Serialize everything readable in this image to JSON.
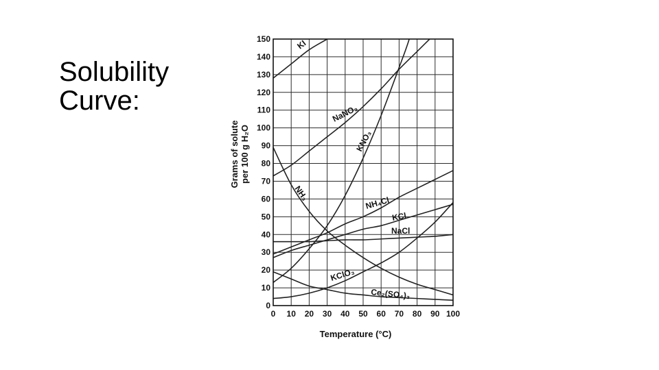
{
  "slide": {
    "title": "Solubility\nCurve:"
  },
  "chart_data": {
    "type": "line",
    "title": "",
    "xlabel": "Temperature (°C)",
    "ylabel_line1": "Grams of solute",
    "ylabel_line2": "per 100 g H₂O",
    "xlim": [
      0,
      100
    ],
    "ylim": [
      0,
      150
    ],
    "x_ticks": [
      0,
      10,
      20,
      30,
      40,
      50,
      60,
      70,
      80,
      90,
      100
    ],
    "y_ticks": [
      0,
      10,
      20,
      30,
      40,
      50,
      60,
      70,
      80,
      90,
      100,
      110,
      120,
      130,
      140,
      150
    ],
    "grid": true,
    "series": [
      {
        "name": "KI",
        "x": [
          0,
          10,
          20,
          30,
          40
        ],
        "y": [
          128,
          136,
          144,
          150,
          156
        ]
      },
      {
        "name": "NaNO₃",
        "x": [
          0,
          10,
          20,
          30,
          40,
          50,
          60,
          70,
          80,
          90,
          100
        ],
        "y": [
          73,
          79,
          87,
          95,
          103,
          112,
          122,
          133,
          143,
          153,
          163
        ]
      },
      {
        "name": "KNO₃",
        "x": [
          0,
          10,
          20,
          30,
          40,
          50,
          60,
          70,
          75,
          80
        ],
        "y": [
          13,
          21,
          32,
          45,
          62,
          83,
          107,
          134,
          148,
          165
        ]
      },
      {
        "name": "NH₃",
        "x": [
          0,
          10,
          20,
          30,
          40,
          50,
          60,
          70,
          80,
          90,
          100
        ],
        "y": [
          89,
          68,
          53,
          42,
          34,
          27,
          21,
          16,
          12,
          9,
          6
        ]
      },
      {
        "name": "NH₄Cl",
        "x": [
          0,
          10,
          20,
          30,
          40,
          50,
          60,
          70,
          80,
          90,
          100
        ],
        "y": [
          29,
          33,
          37,
          41,
          46,
          50,
          55,
          61,
          66,
          71,
          76
        ]
      },
      {
        "name": "KCl",
        "x": [
          0,
          10,
          20,
          30,
          40,
          50,
          60,
          70,
          80,
          90,
          100
        ],
        "y": [
          27,
          31,
          34,
          37,
          40,
          43,
          45,
          48,
          51,
          54,
          57
        ]
      },
      {
        "name": "NaCl",
        "x": [
          0,
          10,
          20,
          30,
          40,
          50,
          60,
          70,
          80,
          90,
          100
        ],
        "y": [
          36,
          36,
          36,
          36.5,
          37,
          37,
          37.5,
          38,
          38.5,
          39,
          40
        ]
      },
      {
        "name": "KClO₃",
        "x": [
          0,
          10,
          20,
          30,
          40,
          50,
          60,
          70,
          80,
          90,
          100
        ],
        "y": [
          4,
          5,
          7,
          10,
          14,
          19,
          24,
          30,
          38,
          47,
          58
        ]
      },
      {
        "name": "Ce₂(SO₄)₃",
        "x": [
          0,
          10,
          20,
          30,
          40,
          50,
          60,
          70,
          80,
          90,
          100
        ],
        "y": [
          19,
          15,
          11,
          9,
          7,
          6,
          5,
          4.5,
          4,
          3.5,
          3
        ]
      }
    ]
  }
}
